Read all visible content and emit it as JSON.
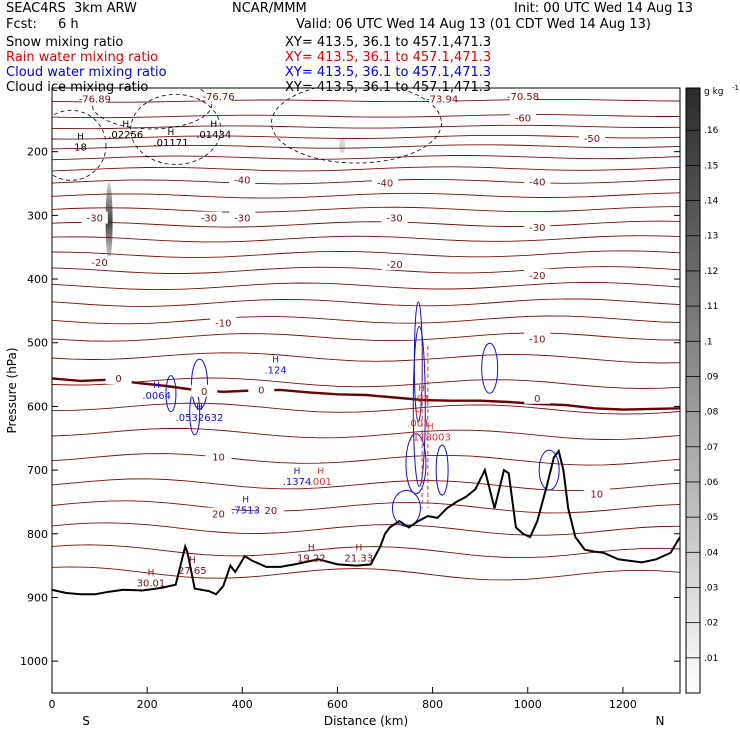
{
  "header": {
    "model": "SEAC4RS  3km ARW",
    "center": "NCAR/MMM",
    "init": "Init: 00 UTC Wed 14 Aug 13",
    "fcst_label": "Fcst:",
    "fcst_value": "6 h",
    "valid": "Valid: 06 UTC Wed 14 Aug 13 (01 CDT Wed 14 Aug 13)"
  },
  "fields": [
    {
      "label": "Snow mixing ratio",
      "xy": "XY= 413.5, 36.1 to 457.1,471.3",
      "color": "#000000"
    },
    {
      "label": "Rain water mixing ratio",
      "xy": "XY= 413.5, 36.1 to 457.1,471.3",
      "color": "#e00000"
    },
    {
      "label": "Cloud water mixing ratio",
      "xy": "XY= 413.5, 36.1 to 457.1,471.3",
      "color": "#0000dd"
    },
    {
      "label": "Cloud ice mixing ratio",
      "xy": "XY= 413.5, 36.1 to 457.1,471.3",
      "color": "#000000"
    }
  ],
  "chart_data": {
    "type": "contour",
    "xlabel": "Distance (km)",
    "ylabel": "Pressure (hPa)",
    "xlim": [
      0,
      1320
    ],
    "ylim": [
      1050,
      100
    ],
    "x_ticks": [
      0,
      200,
      400,
      600,
      800,
      1000,
      1200
    ],
    "y_ticks": [
      200,
      300,
      400,
      500,
      600,
      700,
      800,
      900,
      1000
    ],
    "y_tick_labels": [
      "200",
      "300",
      "400",
      "500",
      "600",
      "700",
      "800",
      "900",
      "1000"
    ],
    "x_ends": {
      "left": "S",
      "right": "N"
    },
    "colorbar": {
      "unit": "g kg",
      "unit_exp": "-1",
      "ticks": [
        ".01",
        ".02",
        ".03",
        ".04",
        ".05",
        ".06",
        ".07",
        ".08",
        ".09",
        ".1",
        ".11",
        ".12",
        ".13",
        ".14",
        ".15",
        ".16"
      ]
    },
    "colors": {
      "temperature": "#7a0f0f",
      "freezing": "#6b0000",
      "cloud_water": "#1010d0",
      "rain": "#e03030",
      "terrain": "#000000"
    },
    "temperature_contour_labels": [
      {
        "text": "-76.89",
        "x": 90,
        "p": 118
      },
      {
        "text": "-76.76",
        "x": 350,
        "p": 114
      },
      {
        "text": "-73.94",
        "x": 820,
        "p": 118
      },
      {
        "text": "-70.58",
        "x": 990,
        "p": 114
      },
      {
        "text": "-60",
        "x": 990,
        "p": 148
      },
      {
        "text": "-50",
        "x": 1135,
        "p": 180
      },
      {
        "text": "-40",
        "x": 400,
        "p": 245
      },
      {
        "text": "-40",
        "x": 700,
        "p": 250
      },
      {
        "text": "-40",
        "x": 1020,
        "p": 248
      },
      {
        "text": "-30",
        "x": 90,
        "p": 305
      },
      {
        "text": "-30",
        "x": 330,
        "p": 305
      },
      {
        "text": "-30",
        "x": 400,
        "p": 305
      },
      {
        "text": "-30",
        "x": 720,
        "p": 305
      },
      {
        "text": "-30",
        "x": 1020,
        "p": 320
      },
      {
        "text": "-20",
        "x": 100,
        "p": 375
      },
      {
        "text": "-20",
        "x": 720,
        "p": 378
      },
      {
        "text": "-20",
        "x": 1020,
        "p": 395
      },
      {
        "text": "-10",
        "x": 360,
        "p": 470
      },
      {
        "text": "-10",
        "x": 1020,
        "p": 495
      },
      {
        "text": "0",
        "x": 140,
        "p": 557
      },
      {
        "text": "0",
        "x": 320,
        "p": 577
      },
      {
        "text": "0",
        "x": 440,
        "p": 575
      },
      {
        "text": "0",
        "x": 1020,
        "p": 588
      },
      {
        "text": "10",
        "x": 350,
        "p": 680
      },
      {
        "text": "10",
        "x": 1145,
        "p": 738
      },
      {
        "text": "20",
        "x": 350,
        "p": 770
      },
      {
        "text": "20",
        "x": 460,
        "p": 764
      }
    ],
    "temperature_isotherm_p": [
      121,
      145,
      162,
      178,
      193,
      210,
      228,
      248,
      270,
      292,
      315,
      338,
      362,
      387,
      412,
      438,
      465,
      492,
      520,
      560,
      600,
      640,
      680,
      720,
      755,
      790,
      825,
      860
    ],
    "freezing_level_p": [
      556,
      560,
      558,
      563,
      568,
      574,
      577,
      575,
      574,
      578,
      581,
      582,
      586,
      590,
      591,
      591,
      593,
      596,
      598,
      603,
      605,
      603
    ],
    "freezing_level_x": [
      0,
      60,
      120,
      180,
      240,
      300,
      360,
      420,
      480,
      540,
      600,
      660,
      720,
      780,
      840,
      900,
      960,
      1020,
      1080,
      1140,
      1200,
      1320
    ],
    "terrain": {
      "x": [
        0,
        30,
        60,
        90,
        120,
        150,
        190,
        230,
        260,
        280,
        285,
        300,
        330,
        345,
        360,
        375,
        385,
        395,
        405,
        420,
        450,
        480,
        510,
        560,
        600,
        640,
        670,
        690,
        700,
        710,
        730,
        750,
        770,
        790,
        810,
        830,
        850,
        870,
        890,
        910,
        930,
        950,
        960,
        975,
        990,
        1005,
        1020,
        1040,
        1055,
        1065,
        1075,
        1085,
        1100,
        1120,
        1140,
        1160,
        1190,
        1210,
        1240,
        1270,
        1300,
        1320
      ],
      "p": [
        888,
        893,
        895,
        895,
        891,
        888,
        889,
        885,
        880,
        820,
        830,
        886,
        890,
        895,
        882,
        850,
        860,
        848,
        835,
        842,
        852,
        852,
        848,
        840,
        848,
        850,
        848,
        820,
        800,
        790,
        780,
        790,
        780,
        772,
        775,
        760,
        750,
        742,
        730,
        700,
        760,
        700,
        705,
        790,
        800,
        805,
        780,
        725,
        680,
        670,
        700,
        760,
        805,
        825,
        828,
        830,
        840,
        842,
        845,
        840,
        830,
        805
      ]
    },
    "H_markers": [
      {
        "label": ".02256",
        "x": 155,
        "p": 175
      },
      {
        "label": ".01171",
        "x": 250,
        "p": 188
      },
      {
        "label": ".01434",
        "x": 340,
        "p": 175
      },
      {
        "label": ".0064",
        "x": 220,
        "p": 585
      },
      {
        "label": ".0532632",
        "x": 310,
        "p": 620
      },
      {
        "label": ".01",
        "x": 777,
        "p": 590
      },
      {
        "label": ".001",
        "x": 770,
        "p": 628
      },
      {
        "label": ".118003",
        "x": 795,
        "p": 650
      },
      {
        "label": ".124",
        "x": 470,
        "p": 545
      },
      {
        "label": ".1374",
        "x": 515,
        "p": 720
      },
      {
        "label": ".001",
        "x": 565,
        "p": 720
      },
      {
        "label": ".7513",
        "x": 407,
        "p": 765
      },
      {
        "label": "27.65",
        "x": 295,
        "p": 860
      },
      {
        "label": "30.01",
        "x": 208,
        "p": 880
      },
      {
        "label": "19.22",
        "x": 545,
        "p": 840
      },
      {
        "label": "21.33",
        "x": 645,
        "p": 840
      },
      {
        "label": "18",
        "x": 60,
        "p": 195
      }
    ]
  }
}
